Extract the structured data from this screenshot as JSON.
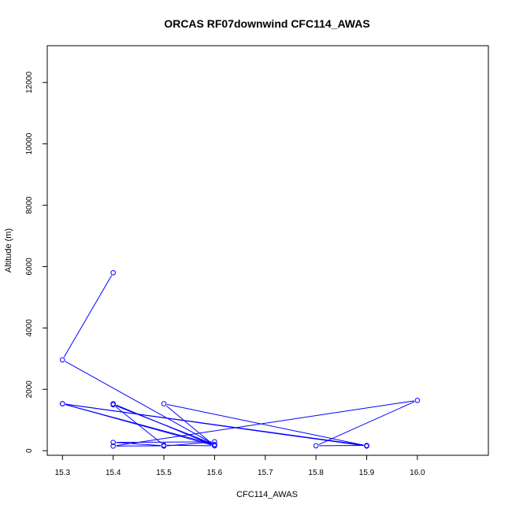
{
  "chart_data": {
    "type": "line",
    "title": "ORCAS RF07downwind CFC114_AWAS",
    "xlabel": "CFC114_AWAS",
    "ylabel": "Altitude (m)",
    "xlim": [
      15.27,
      16.14
    ],
    "ylim": [
      -150,
      13200
    ],
    "x_ticks": [
      "15.3",
      "15.4",
      "15.5",
      "15.6",
      "15.7",
      "15.8",
      "15.9",
      "16.0"
    ],
    "x_tick_values": [
      15.3,
      15.4,
      15.5,
      15.6,
      15.7,
      15.8,
      15.9,
      16.0
    ],
    "y_ticks": [
      "0",
      "2000",
      "4000",
      "6000",
      "8000",
      "10000",
      "12000"
    ],
    "y_tick_values": [
      0,
      2000,
      4000,
      6000,
      8000,
      10000,
      12000
    ],
    "grid": false,
    "legend": "none",
    "series_color": "#0000ff",
    "series": [
      {
        "x": [
          15.4,
          15.3,
          15.6,
          15.3,
          15.6,
          15.4,
          15.4,
          15.6,
          15.4,
          15.5,
          15.6,
          15.5,
          15.9,
          15.9,
          15.3,
          15.9,
          15.8,
          16.0,
          15.4,
          15.5,
          15.4,
          15.6,
          15.5
        ],
        "y": [
          5800,
          2960,
          200,
          1530,
          160,
          1530,
          1500,
          200,
          1500,
          180,
          160,
          1530,
          160,
          150,
          1530,
          170,
          160,
          1640,
          150,
          160,
          270,
          290,
          150
        ]
      }
    ]
  }
}
